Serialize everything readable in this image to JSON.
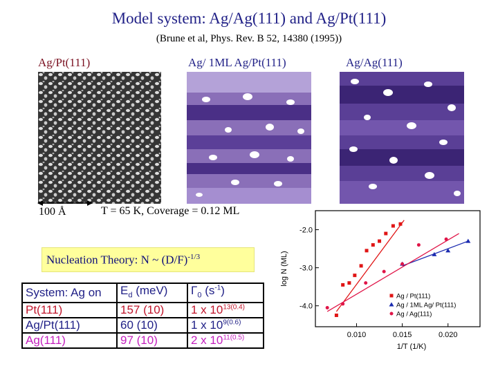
{
  "slide": {
    "title": "Model system: Ag/Ag(111) and Ag/Pt(111)",
    "reference": "(Brune et al, Phys. Rev. B 52, 14380 (1995))",
    "panels": [
      {
        "label": "Ag/Pt(111)"
      },
      {
        "label": "Ag/ 1ML Ag/Pt(111)"
      },
      {
        "label": "Ag/Ag(111)"
      }
    ],
    "scale_label": "100 Å",
    "conditions": "T = 65 K, Coverage = 0.12 ML",
    "theory": {
      "text": "Nucleation Theory: N ~ (D/F)",
      "exponent": "-1/3"
    }
  },
  "table": {
    "header": {
      "col0": "System: Ag on",
      "col1_main": "E",
      "col1_sub": "d",
      "col1_unit": " (meV)",
      "col2_main": "Γ",
      "col2_sub": "0",
      "col2_unit": " (s",
      "col2_exp": "-1",
      "col2_close": ")"
    },
    "rows": [
      {
        "system": "Pt(111)",
        "ed": "157 (10)",
        "g_base": "1 x 10",
        "g_exp": "13",
        "g_err": "(0.4)"
      },
      {
        "system": "Ag/Pt(111)",
        "ed": "60 (10)",
        "g_base": "1 x 10",
        "g_exp": "9",
        "g_err": "(0.6)"
      },
      {
        "system": "Ag(111)",
        "ed": "97 (10)",
        "g_base": "2 x 10",
        "g_exp": "11",
        "g_err": "(0.5)"
      }
    ]
  },
  "chart_data": {
    "type": "scatter",
    "xlabel": "1/T (1/K)",
    "ylabel": "log N (ML)",
    "xlim": [
      0.0055,
      0.0235
    ],
    "ylim": [
      -4.55,
      -1.5
    ],
    "xticks": [
      0.01,
      0.015,
      0.02
    ],
    "xtick_labels": [
      "0.010",
      "0.015",
      "0.020"
    ],
    "yticks": [
      -2.0,
      -3.0,
      -4.0
    ],
    "ytick_labels": [
      "-2.0",
      "-3.0",
      "-4.0"
    ],
    "series": [
      {
        "name": "Ag / Pt(111)",
        "color": "#e01515",
        "marker": "square",
        "x": [
          0.0078,
          0.0085,
          0.0092,
          0.0098,
          0.0105,
          0.0111,
          0.0118,
          0.0125,
          0.0132,
          0.014,
          0.0148
        ],
        "y": [
          -4.25,
          -3.45,
          -3.4,
          -3.2,
          -2.95,
          -2.55,
          -2.4,
          -2.3,
          -2.1,
          -1.9,
          -1.85
        ],
        "fit": [
          [
            0.0078,
            -4.15
          ],
          [
            0.0152,
            -1.75
          ]
        ]
      },
      {
        "name": "Ag / 1ML Ag/ Pt(111)",
        "color": "#1b2bb0",
        "marker": "triangle",
        "x": [
          0.015,
          0.0185,
          0.02,
          0.0222
        ],
        "y": [
          -2.9,
          -2.65,
          -2.55,
          -2.3
        ],
        "fit": [
          [
            0.015,
            -2.95
          ],
          [
            0.0222,
            -2.3
          ]
        ]
      },
      {
        "name": "Ag / Ag(111)",
        "color": "#e01548",
        "marker": "circle",
        "x": [
          0.0068,
          0.0085,
          0.011,
          0.013,
          0.015,
          0.0168,
          0.0198
        ],
        "y": [
          -4.05,
          -3.95,
          -3.4,
          -3.1,
          -2.9,
          -2.4,
          -2.25
        ],
        "fit": [
          [
            0.0068,
            -4.15
          ],
          [
            0.0212,
            -2.1
          ]
        ]
      }
    ],
    "legend": "bottom-right",
    "grid": false
  }
}
